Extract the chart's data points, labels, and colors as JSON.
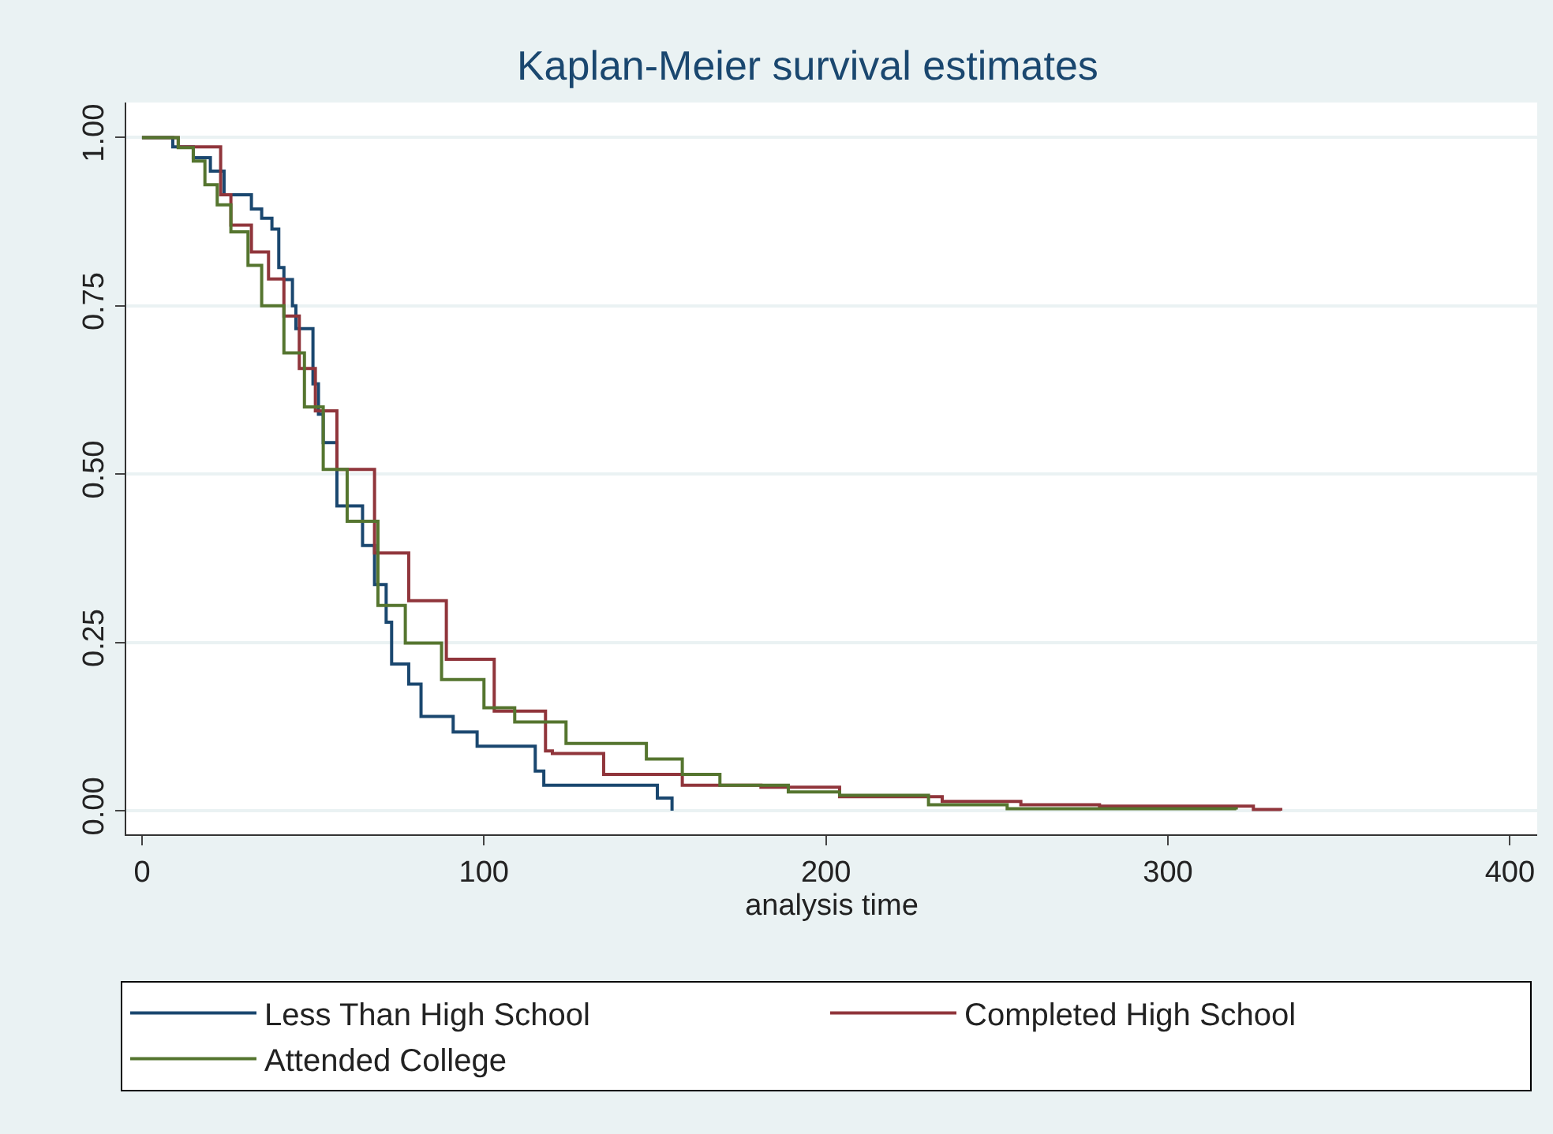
{
  "chart_data": {
    "type": "step",
    "title": "Kaplan-Meier survival estimates",
    "xlabel": "analysis time",
    "xlim": [
      -4.6,
      408
    ],
    "xticks": [
      0,
      100,
      200,
      300,
      400
    ],
    "ylim": [
      -0.035,
      1.052
    ],
    "yticks": [
      {
        "value": 0,
        "label": "0.00"
      },
      {
        "value": 0.25,
        "label": "0.25"
      },
      {
        "value": 0.5,
        "label": "0.50"
      },
      {
        "value": 0.75,
        "label": "0.75"
      },
      {
        "value": 1,
        "label": "1.00"
      }
    ],
    "grid": "y",
    "legend": "bottom",
    "marker": "none",
    "line_style": "solid",
    "series": [
      {
        "name": "Less Than High School",
        "color": "#1a476f",
        "x": [
          0,
          9,
          15,
          20,
          24,
          32,
          35,
          38,
          40,
          41.5,
          44,
          45,
          50,
          51.6,
          53,
          57,
          64.5,
          68,
          71.4,
          73,
          78,
          81.6,
          91,
          98,
          115,
          117.5,
          150.7,
          155
        ],
        "values": [
          1.0,
          0.986,
          0.97,
          0.95,
          0.915,
          0.894,
          0.88,
          0.864,
          0.807,
          0.789,
          0.75,
          0.716,
          0.634,
          0.589,
          0.547,
          0.453,
          0.394,
          0.336,
          0.28,
          0.218,
          0.188,
          0.14,
          0.117,
          0.096,
          0.059,
          0.038,
          0.019,
          0.0
        ]
      },
      {
        "name": "Completed High School",
        "color": "#90353b",
        "x": [
          0,
          10.6,
          23,
          26,
          32,
          37,
          41.5,
          46,
          50.7,
          57,
          68,
          78,
          89,
          103,
          118,
          120,
          135,
          158,
          181,
          204,
          234,
          257,
          280,
          325,
          333
        ],
        "values": [
          1.0,
          0.986,
          0.915,
          0.87,
          0.83,
          0.79,
          0.735,
          0.657,
          0.594,
          0.507,
          0.383,
          0.312,
          0.225,
          0.148,
          0.089,
          0.085,
          0.054,
          0.038,
          0.035,
          0.021,
          0.014,
          0.009,
          0.007,
          0.002,
          0.0
        ]
      },
      {
        "name": "Attended College",
        "color": "#55752f",
        "x": [
          0,
          10.6,
          15,
          18.4,
          22,
          26,
          31,
          35,
          41.5,
          47.5,
          53,
          60,
          69,
          77,
          87.6,
          100,
          109,
          124,
          147.5,
          158,
          169,
          189,
          204,
          230,
          253,
          320
        ],
        "values": [
          1.0,
          0.985,
          0.965,
          0.93,
          0.9,
          0.86,
          0.81,
          0.75,
          0.68,
          0.6,
          0.507,
          0.43,
          0.305,
          0.249,
          0.195,
          0.153,
          0.132,
          0.1,
          0.077,
          0.054,
          0.038,
          0.028,
          0.023,
          0.009,
          0.003,
          0.002
        ]
      }
    ]
  }
}
